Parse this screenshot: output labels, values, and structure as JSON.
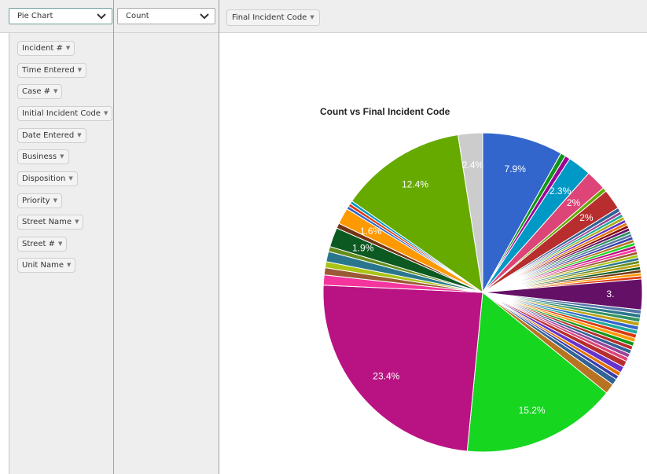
{
  "controls": {
    "renderer": "Pie Chart",
    "aggregator": "Count",
    "column_attribute": "Final Incident Code"
  },
  "attributes": [
    "Incident #",
    "Time Entered",
    "Case #",
    "Initial Incident Code",
    "Date Entered",
    "Business",
    "Disposition",
    "Priority",
    "Street Name",
    "Street #",
    "Unit Name"
  ],
  "chart_data": {
    "type": "pie",
    "title": "Count vs Final Incident Code",
    "start_angle_deg": 0,
    "direction": "clockwise",
    "slices": [
      {
        "value": 7.9,
        "color": "#3366cc",
        "label": "7.9%"
      },
      {
        "value": 0.5,
        "color": "#109618",
        "label": ""
      },
      {
        "value": 0.5,
        "color": "#990099",
        "label": ""
      },
      {
        "value": 2.3,
        "color": "#0099c6",
        "label": "2.3%"
      },
      {
        "value": 2.0,
        "color": "#dd4477",
        "label": "2%"
      },
      {
        "value": 0.4,
        "color": "#66aa00",
        "label": ""
      },
      {
        "value": 2.0,
        "color": "#b82e2e",
        "label": "2%"
      },
      {
        "value": 0.4,
        "color": "#316395",
        "label": ""
      },
      {
        "value": 0.3,
        "color": "#994499",
        "label": ""
      },
      {
        "value": 0.3,
        "color": "#22aa99",
        "label": ""
      },
      {
        "value": 0.3,
        "color": "#aaaa11",
        "label": ""
      },
      {
        "value": 0.3,
        "color": "#6633cc",
        "label": ""
      },
      {
        "value": 0.3,
        "color": "#e67300",
        "label": ""
      },
      {
        "value": 0.3,
        "color": "#8b0707",
        "label": ""
      },
      {
        "value": 0.3,
        "color": "#651067",
        "label": ""
      },
      {
        "value": 0.3,
        "color": "#329262",
        "label": ""
      },
      {
        "value": 0.3,
        "color": "#5574a6",
        "label": ""
      },
      {
        "value": 0.3,
        "color": "#3b3eac",
        "label": ""
      },
      {
        "value": 0.3,
        "color": "#b77322",
        "label": ""
      },
      {
        "value": 0.3,
        "color": "#16d620",
        "label": ""
      },
      {
        "value": 0.3,
        "color": "#b91383",
        "label": ""
      },
      {
        "value": 0.3,
        "color": "#f4359e",
        "label": ""
      },
      {
        "value": 0.3,
        "color": "#9c5935",
        "label": ""
      },
      {
        "value": 0.3,
        "color": "#a9c413",
        "label": ""
      },
      {
        "value": 0.3,
        "color": "#2a778d",
        "label": ""
      },
      {
        "value": 0.3,
        "color": "#668d1c",
        "label": ""
      },
      {
        "value": 0.3,
        "color": "#bea413",
        "label": ""
      },
      {
        "value": 0.3,
        "color": "#0c5922",
        "label": ""
      },
      {
        "value": 0.3,
        "color": "#743411",
        "label": ""
      },
      {
        "value": 0.3,
        "color": "#ff9900",
        "label": ""
      },
      {
        "value": 0.3,
        "color": "#dc3912",
        "label": ""
      },
      {
        "value": 3.0,
        "color": "#651067",
        "label": "3."
      },
      {
        "value": 0.4,
        "color": "#5574a6",
        "label": ""
      },
      {
        "value": 0.4,
        "color": "#2a778d",
        "label": ""
      },
      {
        "value": 0.4,
        "color": "#329262",
        "label": ""
      },
      {
        "value": 0.4,
        "color": "#bea413",
        "label": ""
      },
      {
        "value": 0.4,
        "color": "#3366cc",
        "label": ""
      },
      {
        "value": 0.4,
        "color": "#22aa99",
        "label": ""
      },
      {
        "value": 0.4,
        "color": "#dc3912",
        "label": ""
      },
      {
        "value": 0.4,
        "color": "#ff9900",
        "label": ""
      },
      {
        "value": 0.4,
        "color": "#109618",
        "label": ""
      },
      {
        "value": 0.4,
        "color": "#b82e2e",
        "label": ""
      },
      {
        "value": 0.4,
        "color": "#316395",
        "label": ""
      },
      {
        "value": 0.4,
        "color": "#994499",
        "label": ""
      },
      {
        "value": 0.4,
        "color": "#dd4477",
        "label": ""
      },
      {
        "value": 0.6,
        "color": "#b82e2e",
        "label": ""
      },
      {
        "value": 0.6,
        "color": "#6633cc",
        "label": ""
      },
      {
        "value": 0.4,
        "color": "#e67300",
        "label": ""
      },
      {
        "value": 0.4,
        "color": "#3b3eac",
        "label": ""
      },
      {
        "value": 0.6,
        "color": "#316395",
        "label": ""
      },
      {
        "value": 1.0,
        "color": "#b77322",
        "label": ""
      },
      {
        "value": 15.2,
        "color": "#16d620",
        "label": "15.2%"
      },
      {
        "value": 23.4,
        "color": "#b91383",
        "label": "23.4%"
      },
      {
        "value": 1.0,
        "color": "#f4359e",
        "label": ""
      },
      {
        "value": 0.7,
        "color": "#9c5935",
        "label": ""
      },
      {
        "value": 0.6,
        "color": "#a9c413",
        "label": ""
      },
      {
        "value": 1.0,
        "color": "#2a778d",
        "label": ""
      },
      {
        "value": 0.5,
        "color": "#668d1c",
        "label": ""
      },
      {
        "value": 1.9,
        "color": "#0c5922",
        "label": "1.9%"
      },
      {
        "value": 0.5,
        "color": "#743411",
        "label": ""
      },
      {
        "value": 1.6,
        "color": "#ff9900",
        "label": "1.6%"
      },
      {
        "value": 0.3,
        "color": "#3366cc",
        "label": ""
      },
      {
        "value": 0.3,
        "color": "#dc3912",
        "label": ""
      },
      {
        "value": 0.3,
        "color": "#0099c6",
        "label": ""
      },
      {
        "value": 12.4,
        "color": "#66aa00",
        "label": "12.4%"
      },
      {
        "value": 2.4,
        "color": "#cccccc",
        "label": "2.4%"
      }
    ]
  }
}
